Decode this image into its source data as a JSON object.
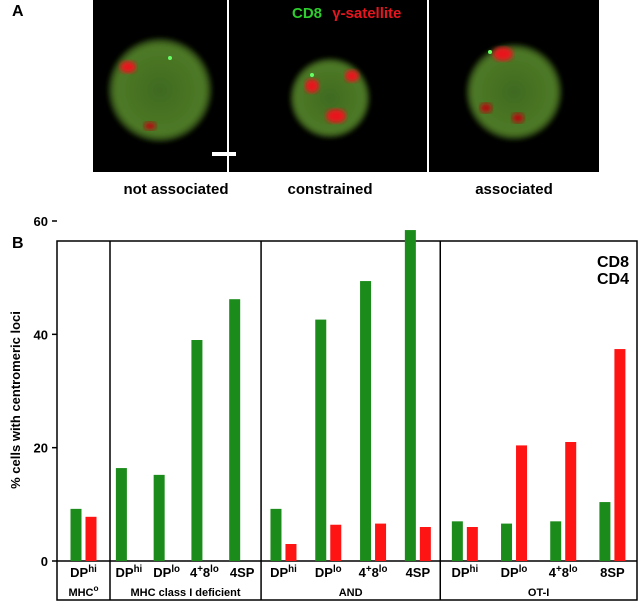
{
  "panel_a": {
    "label": "A",
    "legend": [
      {
        "text": "CD8",
        "color": "#2ecc2e"
      },
      {
        "text": "γ-satellite",
        "color": "#e8141e"
      }
    ],
    "images": [
      {
        "caption": "not associated"
      },
      {
        "caption": "constrained"
      },
      {
        "caption": "associated"
      }
    ]
  },
  "chart_data": {
    "type": "bar",
    "panel": "B",
    "ylabel": "% cells with centromeric loci",
    "ylim": [
      0,
      60
    ],
    "yticks": [
      0,
      20,
      40,
      60
    ],
    "legend": "upper right",
    "series": [
      {
        "name": "CD8",
        "color": "#1b8c1b"
      },
      {
        "name": "CD4",
        "color": "#ff1414"
      }
    ],
    "groups": [
      {
        "label": [
          "MHC",
          "o"
        ],
        "categories": [
          [
            "DP",
            "hi"
          ]
        ],
        "series": [
          {
            "values": [
              9.2
            ]
          },
          {
            "values": [
              7.8
            ]
          }
        ]
      },
      {
        "label": [
          "MHC class I deficient"
        ],
        "categories": [
          [
            "DP",
            "hi"
          ],
          [
            "DP",
            "lo"
          ],
          [
            "4",
            "+",
            "8",
            "lo"
          ],
          [
            "4SP"
          ]
        ],
        "series": [
          {
            "values": [
              16.4,
              15.2,
              39,
              46.2
            ]
          },
          {
            "values": [
              null,
              null,
              null,
              null
            ]
          }
        ]
      },
      {
        "label": [
          "AND"
        ],
        "categories": [
          [
            "DP",
            "hi"
          ],
          [
            "DP",
            "lo"
          ],
          [
            "4",
            "+",
            "8",
            "lo"
          ],
          [
            "4SP"
          ]
        ],
        "series": [
          {
            "values": [
              9.2,
              42.6,
              49.4,
              58.4
            ]
          },
          {
            "values": [
              3,
              6.4,
              6.6,
              6
            ]
          }
        ]
      },
      {
        "label": [
          "OT-I"
        ],
        "categories": [
          [
            "DP",
            "hi"
          ],
          [
            "DP",
            "lo"
          ],
          [
            "4",
            "+",
            "8",
            "lo"
          ],
          [
            "8SP"
          ]
        ],
        "series": [
          {
            "values": [
              7,
              6.6,
              7,
              10.4
            ]
          },
          {
            "values": [
              6,
              20.4,
              21,
              37.4
            ]
          }
        ]
      }
    ]
  }
}
